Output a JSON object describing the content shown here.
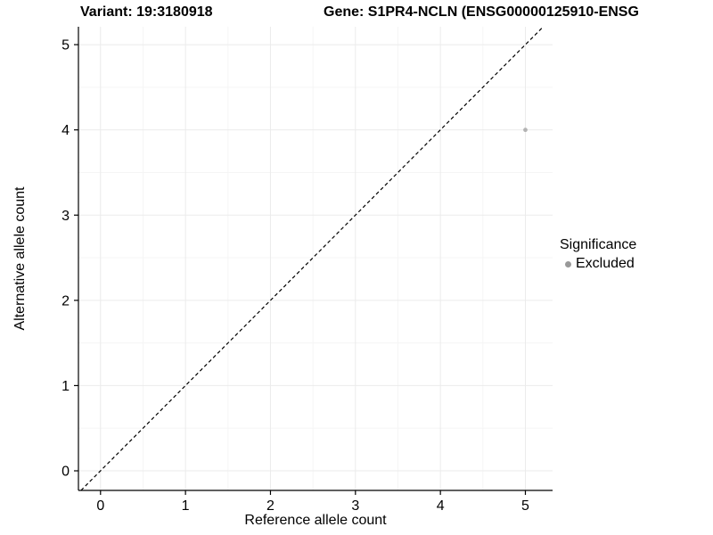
{
  "chart_data": {
    "type": "scatter",
    "title_left": "Variant: 19:3180918",
    "title_right": "Gene: S1PR4-NCLN (ENSG00000125910-ENSG",
    "xlabel": "Reference allele count",
    "ylabel": "Alternative allele count",
    "x_range": [
      -0.26,
      5.32
    ],
    "y_range": [
      -0.23,
      5.21
    ],
    "x_ticks": [
      0,
      1,
      2,
      3,
      4,
      5
    ],
    "y_ticks": [
      0,
      1,
      2,
      3,
      4,
      5
    ],
    "grid": true,
    "grid_major_color": "#ebebeb",
    "grid_minor_color": "#f5f5f5",
    "identity_line": {
      "style": "dashed",
      "color": "#000000"
    },
    "points": [
      {
        "x": 5,
        "y": 4,
        "series": "Excluded"
      }
    ],
    "point_color": "#b3b3b3",
    "axis_color": "#000000",
    "legend": {
      "title": "Significance",
      "position": "right",
      "entries": [
        {
          "label": "Excluded",
          "color": "#999999"
        }
      ]
    }
  }
}
